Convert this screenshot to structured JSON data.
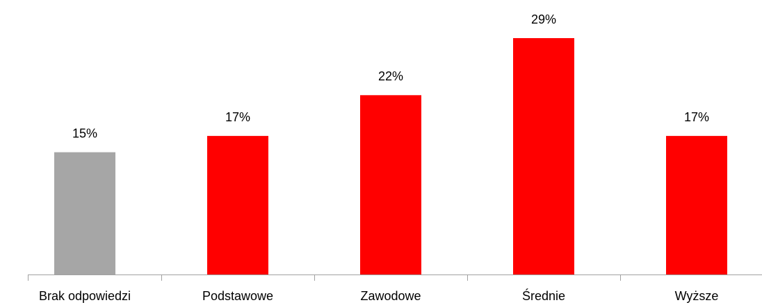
{
  "chart_data": {
    "type": "bar",
    "categories": [
      "Brak odpowiedzi",
      "Podstawowe",
      "Zawodowe",
      "Średnie",
      "Wyższe"
    ],
    "values": [
      15,
      17,
      22,
      29,
      17
    ],
    "value_labels": [
      "15%",
      "17%",
      "22%",
      "29%",
      "17%"
    ],
    "colors": [
      "#a6a6a6",
      "#ff0000",
      "#ff0000",
      "#ff0000",
      "#ff0000"
    ]
  }
}
